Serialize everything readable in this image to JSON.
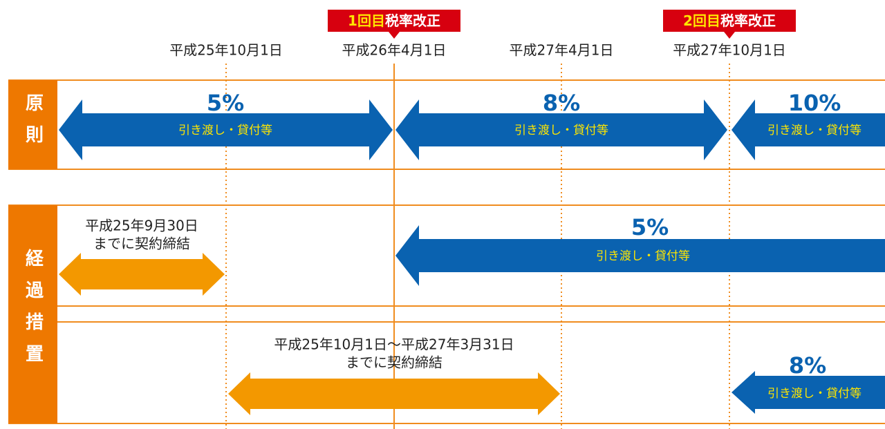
{
  "revisions": [
    {
      "ordinal": "1回目",
      "label": "税率改正"
    },
    {
      "ordinal": "2回目",
      "label": "税率改正"
    }
  ],
  "dates": [
    "平成25年10月1日",
    "平成26年4月1日",
    "平成27年4月1日",
    "平成27年10月1日"
  ],
  "principle": {
    "label": "原則",
    "periods": [
      {
        "rate": "5%",
        "note": "引き渡し・貸付等"
      },
      {
        "rate": "8%",
        "note": "引き渡し・貸付等"
      },
      {
        "rate": "10%",
        "note": "引き渡し・貸付等"
      }
    ]
  },
  "transitional": {
    "label": "経過措置",
    "contracts": [
      {
        "period": "平成25年9月30日",
        "suffix": "までに契約締結"
      },
      {
        "period": "平成25年10月1日〜平成27年3月31日",
        "suffix": "までに契約締結"
      }
    ],
    "periods": [
      {
        "rate": "5%",
        "note": "引き渡し・貸付等"
      },
      {
        "rate": "8%",
        "note": "引き渡し・貸付等"
      }
    ]
  }
}
